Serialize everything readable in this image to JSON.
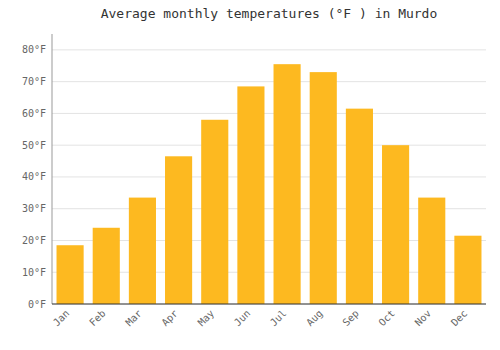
{
  "chart_data": {
    "type": "bar",
    "title": "Average monthly temperatures (°F ) in Murdo",
    "categories": [
      "Jan",
      "Feb",
      "Mar",
      "Apr",
      "May",
      "Jun",
      "Jul",
      "Aug",
      "Sep",
      "Oct",
      "Nov",
      "Dec"
    ],
    "values": [
      18.5,
      24.0,
      33.5,
      46.5,
      58.0,
      68.5,
      75.5,
      73.0,
      61.5,
      50.0,
      33.5,
      21.5
    ],
    "color": "#FDB920",
    "ylim": [
      0,
      85
    ],
    "yticks": [
      {
        "value": 0,
        "label": "0°F"
      },
      {
        "value": 10,
        "label": "10°F"
      },
      {
        "value": 20,
        "label": "20°F"
      },
      {
        "value": 30,
        "label": "30°F"
      },
      {
        "value": 40,
        "label": "40°F"
      },
      {
        "value": 50,
        "label": "50°F"
      },
      {
        "value": 60,
        "label": "60°F"
      },
      {
        "value": 70,
        "label": "70°F"
      },
      {
        "value": 80,
        "label": "80°F"
      }
    ],
    "grid": true
  }
}
